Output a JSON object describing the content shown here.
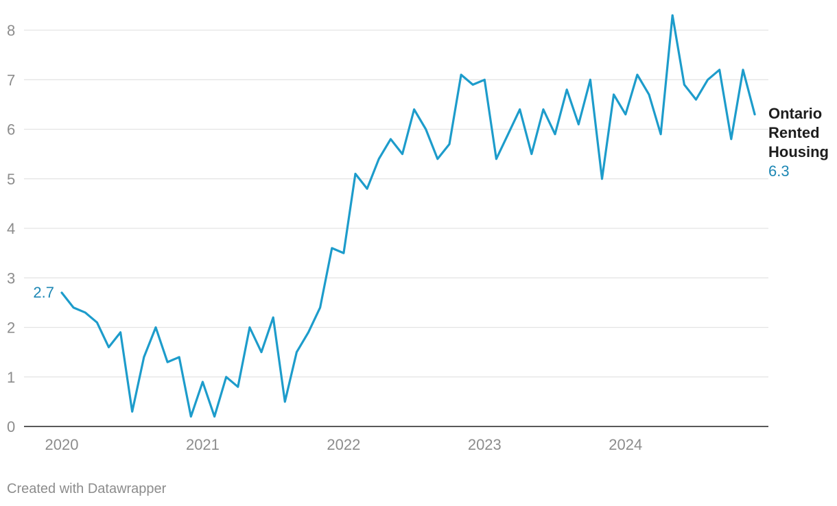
{
  "footer": {
    "credit": "Created with Datawrapper"
  },
  "colors": {
    "line": "#1d9ccb",
    "label": "#1d87b4",
    "grid": "#e3e3e3",
    "tick": "#8c8c8c",
    "baseline": "#222222"
  },
  "chart_data": {
    "type": "line",
    "title": "",
    "xlabel": "",
    "ylabel": "",
    "x_ticks": [
      "2020",
      "2021",
      "2022",
      "2023",
      "2024"
    ],
    "y_ticks": [
      0,
      1,
      2,
      3,
      4,
      5,
      6,
      7,
      8
    ],
    "ylim": [
      0,
      8
    ],
    "grid": true,
    "series": [
      {
        "name": "Ontario Rented Housing",
        "start_label": "2.7",
        "end_label": "6.3",
        "x": [
          "2020-01",
          "2020-02",
          "2020-03",
          "2020-04",
          "2020-05",
          "2020-06",
          "2020-07",
          "2020-08",
          "2020-09",
          "2020-10",
          "2020-11",
          "2020-12",
          "2021-01",
          "2021-02",
          "2021-03",
          "2021-04",
          "2021-05",
          "2021-06",
          "2021-07",
          "2021-08",
          "2021-09",
          "2021-10",
          "2021-11",
          "2021-12",
          "2022-01",
          "2022-02",
          "2022-03",
          "2022-04",
          "2022-05",
          "2022-06",
          "2022-07",
          "2022-08",
          "2022-09",
          "2022-10",
          "2022-11",
          "2022-12",
          "2023-01",
          "2023-02",
          "2023-03",
          "2023-04",
          "2023-05",
          "2023-06",
          "2023-07",
          "2023-08",
          "2023-09",
          "2023-10",
          "2023-11",
          "2023-12",
          "2024-01",
          "2024-02",
          "2024-03",
          "2024-04",
          "2024-05",
          "2024-06",
          "2024-07",
          "2024-08",
          "2024-09",
          "2024-10",
          "2024-11",
          "2024-12"
        ],
        "values": [
          2.7,
          2.4,
          2.3,
          2.1,
          1.6,
          1.9,
          0.3,
          1.4,
          2.0,
          1.3,
          1.4,
          0.2,
          0.9,
          0.2,
          1.0,
          0.8,
          2.0,
          1.5,
          2.2,
          0.5,
          1.5,
          1.9,
          2.4,
          3.6,
          3.5,
          5.1,
          4.8,
          5.4,
          5.8,
          5.5,
          6.4,
          6.0,
          5.4,
          5.7,
          7.1,
          6.9,
          7.0,
          5.4,
          5.9,
          6.4,
          5.5,
          6.4,
          5.9,
          6.8,
          6.1,
          7.0,
          5.0,
          6.7,
          6.3,
          7.1,
          6.7,
          5.9,
          8.3,
          6.9,
          6.6,
          7.0,
          7.2,
          5.8,
          7.2,
          6.3
        ]
      }
    ]
  }
}
